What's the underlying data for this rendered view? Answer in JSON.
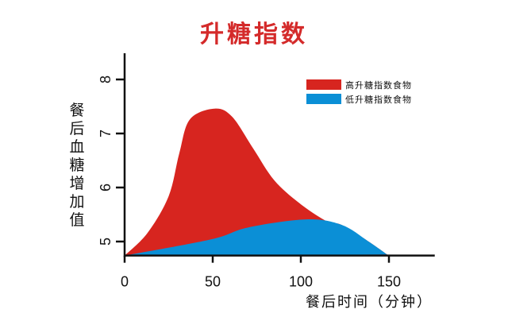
{
  "chart_data": {
    "type": "area",
    "title": "升糖指数",
    "xlabel": "餐后时间（分钟）",
    "ylabel": "餐后血糖增加值",
    "xlim": [
      0,
      176
    ],
    "ylim": [
      4.74,
      8.47
    ],
    "xticks": [
      "0",
      "50",
      "100",
      "150"
    ],
    "yticks": [
      "5",
      "6",
      "7",
      "8"
    ],
    "legend_position": "top-right",
    "series": [
      {
        "name": "高升糖指数食物",
        "color": "#d7251f",
        "x": [
          0,
          13,
          25,
          31,
          37,
          51,
          61,
          73,
          85,
          100,
          115
        ],
        "y": [
          4.74,
          5.16,
          5.84,
          6.63,
          7.26,
          7.46,
          7.31,
          6.72,
          6.13,
          5.69,
          5.37
        ]
      },
      {
        "name": "低升糖指数食物",
        "color": "#0b8fd6",
        "x": [
          0,
          49,
          70,
          103,
          123,
          138,
          149
        ],
        "y": [
          4.74,
          5.04,
          5.26,
          5.41,
          5.31,
          5.01,
          4.76
        ]
      }
    ]
  }
}
